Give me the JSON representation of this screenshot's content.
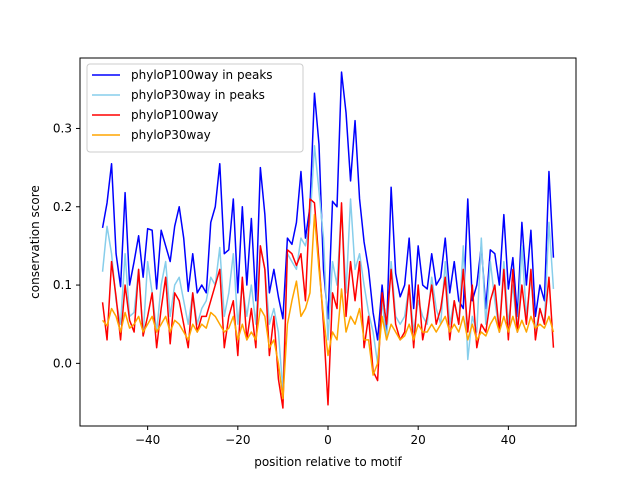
{
  "chart_data": {
    "type": "line",
    "xlabel": "position relative to motif",
    "ylabel": "conservation score",
    "xlim": [
      -55.0,
      55.0
    ],
    "ylim": [
      -0.08,
      0.39
    ],
    "x_ticks": [
      -40,
      -20,
      0,
      20,
      40
    ],
    "y_ticks": [
      0.0,
      0.1,
      0.2,
      0.3
    ],
    "x_tick_labels": [
      "−40",
      "−20",
      "0",
      "20",
      "40"
    ],
    "y_tick_labels": [
      "0.0",
      "0.1",
      "0.2",
      "0.3"
    ],
    "legend_position": "top-left",
    "x": [
      -50,
      -49,
      -48,
      -47,
      -46,
      -45,
      -44,
      -43,
      -42,
      -41,
      -40,
      -39,
      -38,
      -37,
      -36,
      -35,
      -34,
      -33,
      -32,
      -31,
      -30,
      -29,
      -28,
      -27,
      -26,
      -25,
      -24,
      -23,
      -22,
      -21,
      -20,
      -19,
      -18,
      -17,
      -16,
      -15,
      -14,
      -13,
      -12,
      -11,
      -10,
      -9,
      -8,
      -7,
      -6,
      -5,
      -4,
      -3,
      -2,
      -1,
      0,
      1,
      2,
      3,
      4,
      5,
      6,
      7,
      8,
      9,
      10,
      11,
      12,
      13,
      14,
      15,
      16,
      17,
      18,
      19,
      20,
      21,
      22,
      23,
      24,
      25,
      26,
      27,
      28,
      29,
      30,
      31,
      32,
      33,
      34,
      35,
      36,
      37,
      38,
      39,
      40,
      41,
      42,
      43,
      44,
      45,
      46,
      47,
      48,
      49,
      50
    ],
    "series": [
      {
        "name": "phyloP100way in peaks",
        "color": "#0000ff",
        "values": [
          0.173,
          0.205,
          0.255,
          0.14,
          0.098,
          0.218,
          0.1,
          0.13,
          0.163,
          0.11,
          0.172,
          0.17,
          0.095,
          0.17,
          0.15,
          0.13,
          0.175,
          0.2,
          0.16,
          0.092,
          0.14,
          0.09,
          0.1,
          0.09,
          0.18,
          0.2,
          0.255,
          0.14,
          0.145,
          0.21,
          0.09,
          0.2,
          0.1,
          0.185,
          0.08,
          0.25,
          0.19,
          0.09,
          0.12,
          0.085,
          0.057,
          0.16,
          0.152,
          0.18,
          0.245,
          0.16,
          0.2,
          0.345,
          0.28,
          0.12,
          0.057,
          0.207,
          0.2,
          0.372,
          0.32,
          0.233,
          0.31,
          0.21,
          0.155,
          0.12,
          0.065,
          0.03,
          0.1,
          0.04,
          0.225,
          0.115,
          0.085,
          0.1,
          0.16,
          0.07,
          0.15,
          0.1,
          0.095,
          0.14,
          0.1,
          0.11,
          0.16,
          0.09,
          0.13,
          0.08,
          0.07,
          0.21,
          0.08,
          0.1,
          0.15,
          0.07,
          0.145,
          0.14,
          0.1,
          0.19,
          0.095,
          0.135,
          0.06,
          0.18,
          0.1,
          0.17,
          0.06,
          0.1,
          0.08,
          0.245,
          0.135
        ]
      },
      {
        "name": "phyloP30way in peaks",
        "color": "#87ceeb",
        "values": [
          0.117,
          0.175,
          0.14,
          0.08,
          0.05,
          0.14,
          0.06,
          0.065,
          0.12,
          0.035,
          0.13,
          0.09,
          0.04,
          0.1,
          0.13,
          0.06,
          0.1,
          0.11,
          0.08,
          0.05,
          0.09,
          0.05,
          0.07,
          0.08,
          0.11,
          0.1,
          0.148,
          0.06,
          0.09,
          0.14,
          0.05,
          0.1,
          0.06,
          0.1,
          0.05,
          0.15,
          0.12,
          0.05,
          0.07,
          0.04,
          -0.035,
          0.14,
          0.13,
          0.12,
          0.16,
          0.15,
          0.18,
          0.278,
          0.22,
          0.16,
          0.03,
          0.13,
          0.1,
          0.2,
          0.09,
          0.21,
          0.12,
          0.14,
          0.1,
          0.065,
          0.04,
          0.0,
          0.08,
          0.03,
          0.13,
          0.06,
          0.05,
          0.06,
          0.1,
          0.04,
          0.08,
          0.06,
          0.05,
          0.11,
          0.07,
          0.05,
          0.13,
          0.05,
          0.08,
          0.05,
          0.15,
          0.005,
          0.06,
          0.04,
          0.16,
          0.05,
          0.13,
          0.08,
          0.04,
          0.13,
          0.05,
          0.1,
          0.04,
          0.15,
          0.06,
          0.11,
          0.04,
          0.07,
          0.05,
          0.18,
          0.095
        ]
      },
      {
        "name": "phyloP100way",
        "color": "#ff0000",
        "values": [
          0.078,
          0.03,
          0.13,
          0.085,
          0.03,
          0.1,
          0.055,
          0.04,
          0.12,
          0.035,
          0.06,
          0.09,
          0.02,
          0.07,
          0.11,
          0.025,
          0.09,
          0.08,
          0.05,
          0.02,
          0.09,
          0.04,
          0.06,
          0.06,
          0.08,
          0.1,
          0.12,
          0.02,
          0.06,
          0.08,
          0.01,
          0.11,
          0.03,
          0.07,
          0.02,
          0.15,
          0.12,
          0.01,
          0.06,
          -0.02,
          -0.057,
          0.145,
          0.14,
          0.125,
          0.14,
          0.08,
          0.21,
          0.205,
          0.13,
          0.05,
          -0.053,
          0.09,
          0.07,
          0.205,
          0.06,
          0.13,
          0.08,
          0.13,
          0.02,
          0.06,
          -0.01,
          -0.022,
          0.09,
          0.05,
          0.12,
          0.05,
          0.03,
          0.04,
          0.1,
          0.02,
          0.1,
          0.03,
          0.06,
          0.1,
          0.05,
          0.07,
          0.11,
          0.03,
          0.08,
          0.05,
          0.12,
          0.04,
          0.1,
          0.02,
          0.05,
          0.04,
          0.08,
          0.1,
          0.04,
          0.12,
          0.03,
          0.12,
          0.04,
          0.1,
          0.05,
          0.12,
          0.03,
          0.07,
          0.05,
          0.11,
          0.02
        ]
      },
      {
        "name": "phyloP30way",
        "color": "#ffa500",
        "values": [
          0.055,
          0.048,
          0.07,
          0.06,
          0.04,
          0.065,
          0.045,
          0.05,
          0.06,
          0.04,
          0.05,
          0.06,
          0.04,
          0.05,
          0.06,
          0.04,
          0.055,
          0.05,
          0.04,
          0.03,
          0.05,
          0.04,
          0.05,
          0.045,
          0.065,
          0.06,
          0.05,
          0.04,
          0.045,
          0.06,
          0.03,
          0.05,
          0.03,
          0.04,
          0.03,
          0.07,
          0.06,
          0.02,
          0.03,
          0.0,
          -0.045,
          0.05,
          0.08,
          0.105,
          0.06,
          0.07,
          0.09,
          0.19,
          0.12,
          0.06,
          0.01,
          0.04,
          0.03,
          0.095,
          0.04,
          0.06,
          0.05,
          0.07,
          0.03,
          0.03,
          -0.015,
          0.0,
          0.06,
          0.03,
          0.05,
          0.04,
          0.03,
          0.035,
          0.05,
          0.03,
          0.05,
          0.04,
          0.04,
          0.05,
          0.04,
          0.05,
          0.06,
          0.04,
          0.05,
          0.04,
          0.06,
          0.03,
          0.05,
          0.03,
          0.04,
          0.035,
          0.05,
          0.06,
          0.04,
          0.06,
          0.04,
          0.06,
          0.04,
          0.055,
          0.04,
          0.06,
          0.045,
          0.05,
          0.045,
          0.06,
          0.04
        ]
      }
    ]
  }
}
